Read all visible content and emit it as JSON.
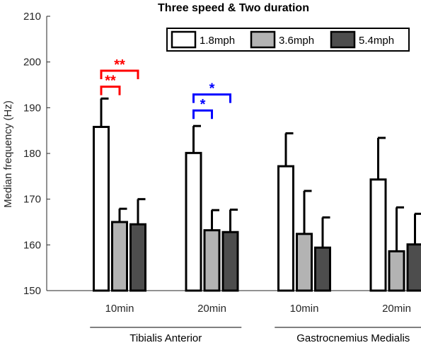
{
  "chart_data": {
    "type": "bar",
    "title": "Three speed & Two duration",
    "ylabel": "Median frequency  (Hz)",
    "xlabel": "",
    "ylim": [
      150,
      210
    ],
    "yticks": [
      150,
      160,
      170,
      180,
      190,
      200,
      210
    ],
    "categories": [
      "10min",
      "20min",
      "10min",
      "20min"
    ],
    "groups": [
      {
        "label": "Tibialis Anterior",
        "categories": [
          0,
          1
        ]
      },
      {
        "label": "Gastrocnemius Medialis",
        "categories": [
          2,
          3
        ]
      }
    ],
    "series": [
      {
        "name": "1.8mph",
        "color": "#ffffff",
        "values": [
          185.8,
          180.1,
          177.2,
          174.3
        ],
        "errors": [
          6.2,
          5.9,
          7.2,
          9.1
        ]
      },
      {
        "name": "3.6mph",
        "color": "#b3b3b3",
        "values": [
          165.0,
          163.2,
          162.4,
          158.6
        ],
        "errors": [
          2.9,
          4.4,
          9.4,
          9.6
        ]
      },
      {
        "name": "5.4mph",
        "color": "#4d4d4d",
        "values": [
          164.5,
          162.8,
          159.4,
          160.1
        ],
        "errors": [
          5.5,
          4.9,
          6.6,
          6.7
        ]
      }
    ],
    "significance": [
      {
        "category": 0,
        "from": 0,
        "to": 1,
        "y": 194.6,
        "label": "**",
        "color": "#ff0000"
      },
      {
        "category": 0,
        "from": 0,
        "to": 2,
        "y": 198.1,
        "label": "**",
        "color": "#ff0000"
      },
      {
        "category": 1,
        "from": 0,
        "to": 1,
        "y": 189.4,
        "label": "*",
        "color": "#0000ff"
      },
      {
        "category": 1,
        "from": 0,
        "to": 2,
        "y": 192.9,
        "label": "*",
        "color": "#0000ff"
      }
    ],
    "legend_position": "top-right",
    "grid": false
  }
}
